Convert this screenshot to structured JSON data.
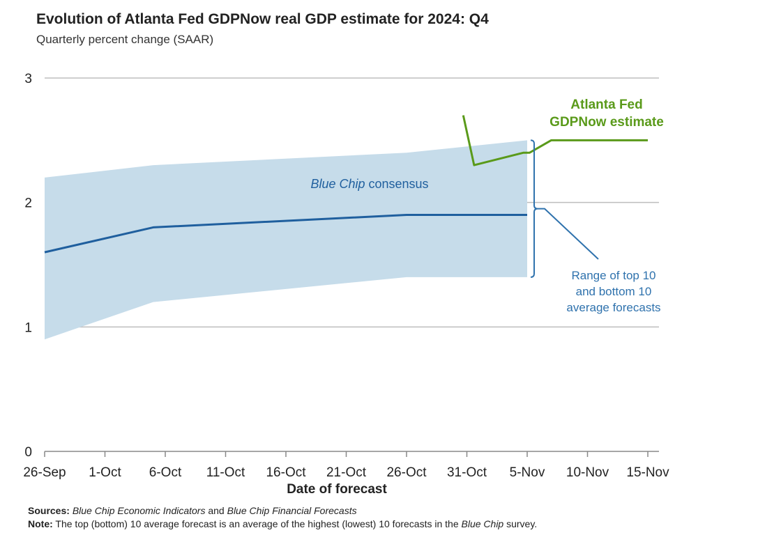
{
  "chart_data": {
    "type": "line",
    "title": "Evolution of Atlanta Fed GDPNow real GDP estimate for 2024: Q4",
    "subtitle": "Quarterly percent change (SAAR)",
    "xlabel": "Date of forecast",
    "ylabel": "",
    "ylim": [
      0,
      3
    ],
    "yticks": [
      0,
      1,
      2,
      3
    ],
    "x_tick_labels": [
      "26-Sep",
      "1-Oct",
      "6-Oct",
      "11-Oct",
      "16-Oct",
      "21-Oct",
      "26-Oct",
      "31-Oct",
      "5-Nov",
      "10-Nov",
      "15-Nov"
    ],
    "x_tick_days": [
      0,
      5,
      10,
      15,
      20,
      25,
      30,
      35,
      40,
      45,
      50
    ],
    "grid": true,
    "series": [
      {
        "name": "Blue Chip consensus",
        "color": "#1f5f9e",
        "x_days": [
          0,
          9,
          30,
          40
        ],
        "values": [
          1.6,
          1.8,
          1.9,
          1.9
        ]
      },
      {
        "name": "Atlanta Fed GDPNow estimate",
        "color": "#5a9a1a",
        "x_days": [
          34.7,
          35.6,
          39.7,
          40.2,
          42,
          50
        ],
        "values": [
          2.7,
          2.3,
          2.4,
          2.4,
          2.5,
          2.5
        ]
      }
    ],
    "range_band": {
      "name": "Range of top 10 and bottom 10 average forecasts",
      "color": "#c6dcea",
      "x_days": [
        0,
        9,
        30,
        40
      ],
      "upper": [
        2.2,
        2.3,
        2.4,
        2.5
      ],
      "lower": [
        0.9,
        1.2,
        1.4,
        1.4
      ]
    },
    "annotations": {
      "bluechip_label_italic": "Blue Chip",
      "bluechip_label_rest": " consensus",
      "gdpnow_line1": "Atlanta Fed",
      "gdpnow_line2": "GDPNow estimate",
      "range_line1": "Range of top 10",
      "range_line2": "and bottom 10",
      "range_line3": "average forecasts"
    },
    "colors": {
      "band_annotation": "#2f72ad",
      "gridline": "#bdbdbd",
      "axis": "#888888"
    }
  },
  "notes": {
    "sources_label": "Sources:",
    "sources_part1": "Blue Chip Economic Indicators",
    "sources_part2": " and ",
    "sources_part3": "Blue Chip Financial Forecasts",
    "note_label": "Note:",
    "note_part1": " The top (bottom) 10 average forecast is an average of the highest (lowest) 10 forecasts in the ",
    "note_part2": "Blue Chip",
    "note_part3": " survey."
  }
}
